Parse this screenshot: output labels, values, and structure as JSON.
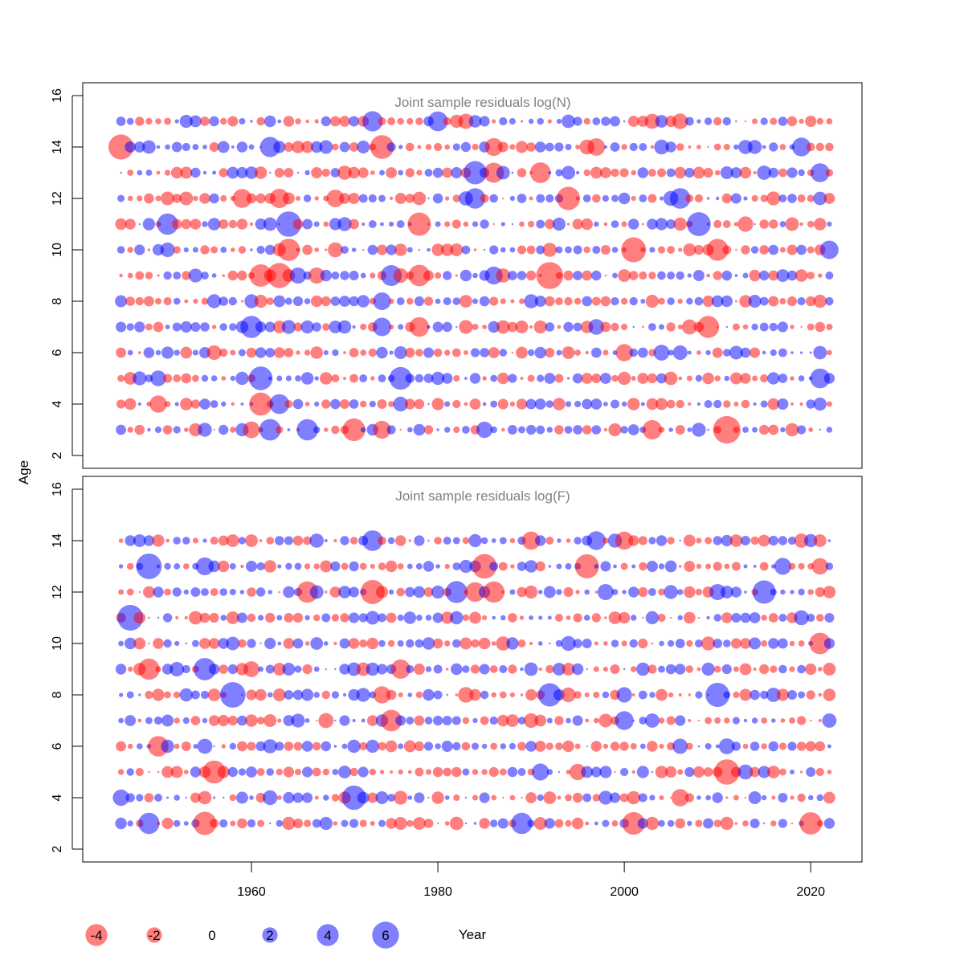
{
  "chart_data": {
    "type": "scatter",
    "variant": "bubble",
    "shared_axes": {
      "ylabel": "Age",
      "xlabel": "Year",
      "x_ticks": [
        1960,
        1980,
        2000,
        2020
      ],
      "y_ticks": [
        2,
        4,
        6,
        8,
        10,
        12,
        14,
        16
      ],
      "xlim": [
        1941.9,
        2025.5
      ],
      "ylim": [
        1.5,
        16.5
      ],
      "grid": false
    },
    "panels": [
      {
        "title": "Joint sample residuals log(N)",
        "x_start": 1946,
        "x_end": 2022,
        "ages": [
          3,
          15
        ],
        "note": "one residual per year and age; bubble area proportional to |residual|; red = negative, blue = positive"
      },
      {
        "title": "Joint sample residuals log(F)",
        "x_start": 1946,
        "x_end": 2022,
        "ages": [
          3,
          14
        ],
        "note": "one residual per year and age; bubble area proportional to |residual|; red = negative, blue = positive"
      }
    ],
    "colors": {
      "negative": "#ff0000",
      "positive": "#0000ff",
      "title": "#808080"
    },
    "legend": {
      "placement": "bottom",
      "values": [
        -4,
        -2,
        0,
        2,
        4,
        6
      ],
      "labels": [
        "-4",
        "-2",
        "0",
        "2",
        "4",
        "6"
      ]
    }
  }
}
